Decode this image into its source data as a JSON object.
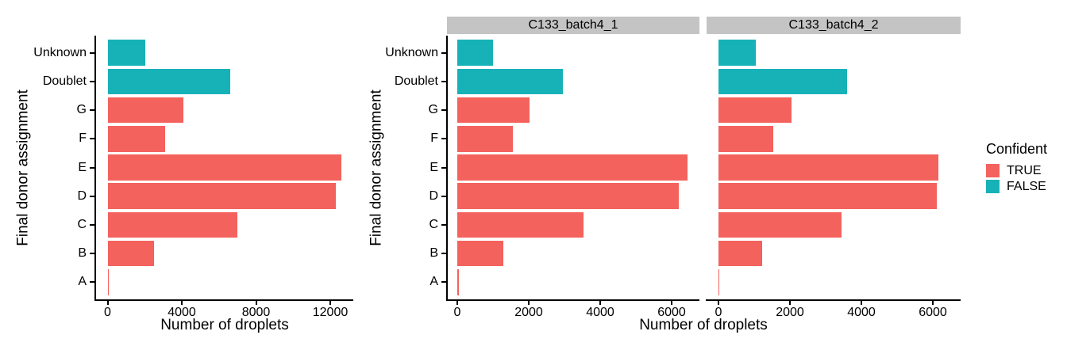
{
  "colors": {
    "TRUE": "#F4625D",
    "FALSE": "#17B2B7",
    "strip_background": "#C4C4C4",
    "axis": "#000000",
    "background": "#FFFFFF"
  },
  "legend": {
    "title": "Confident",
    "items": [
      {
        "label": "TRUE",
        "group": "TRUE"
      },
      {
        "label": "FALSE",
        "group": "FALSE"
      }
    ]
  },
  "chart_data": [
    {
      "type": "bar",
      "orientation": "horizontal",
      "title": "",
      "ylabel": "Final donor assignment",
      "xlabel": "Number of droplets",
      "categories": [
        "Unknown",
        "Doublet",
        "G",
        "F",
        "E",
        "D",
        "C",
        "B",
        "A"
      ],
      "values": [
        2050,
        6600,
        4100,
        3100,
        12600,
        12300,
        7000,
        2500,
        80
      ],
      "groups": [
        "FALSE",
        "FALSE",
        "TRUE",
        "TRUE",
        "TRUE",
        "TRUE",
        "TRUE",
        "TRUE",
        "TRUE"
      ],
      "xticks": [
        0,
        4000,
        8000,
        12000
      ],
      "xlim": [
        0,
        13900
      ],
      "legend_title": "Confident",
      "grid": false
    },
    {
      "type": "bar",
      "orientation": "horizontal",
      "title": "C133_batch4_1",
      "ylabel": "Final donor assignment",
      "xlabel": "Number of droplets",
      "categories": [
        "Unknown",
        "Doublet",
        "G",
        "F",
        "E",
        "D",
        "C",
        "B",
        "A"
      ],
      "values": [
        1000,
        2950,
        2020,
        1550,
        6450,
        6200,
        3540,
        1280,
        50
      ],
      "groups": [
        "FALSE",
        "FALSE",
        "TRUE",
        "TRUE",
        "TRUE",
        "TRUE",
        "TRUE",
        "TRUE",
        "TRUE"
      ],
      "xticks": [
        0,
        2000,
        4000,
        6000
      ],
      "xlim": [
        0,
        6800
      ],
      "legend_title": "Confident",
      "grid": false
    },
    {
      "type": "bar",
      "orientation": "horizontal",
      "title": "C133_batch4_2",
      "ylabel": "Final donor assignment",
      "xlabel": "Number of droplets",
      "categories": [
        "Unknown",
        "Doublet",
        "G",
        "F",
        "E",
        "D",
        "C",
        "B",
        "A"
      ],
      "values": [
        1040,
        3600,
        2040,
        1530,
        6150,
        6110,
        3440,
        1220,
        30
      ],
      "groups": [
        "FALSE",
        "FALSE",
        "TRUE",
        "TRUE",
        "TRUE",
        "TRUE",
        "TRUE",
        "TRUE",
        "TRUE"
      ],
      "xticks": [
        0,
        2000,
        4000,
        6000
      ],
      "xlim": [
        0,
        6800
      ],
      "legend_title": "Confident",
      "grid": false
    }
  ]
}
